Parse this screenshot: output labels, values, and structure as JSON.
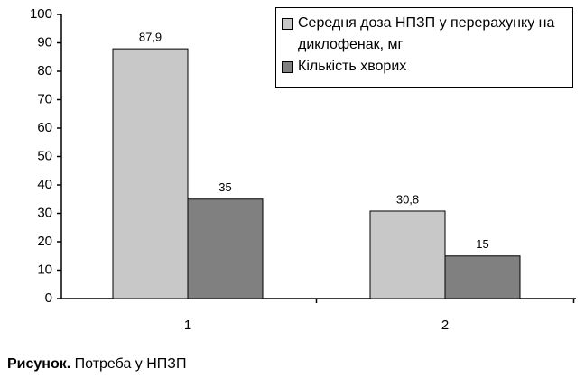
{
  "chart_data": {
    "type": "bar",
    "categories": [
      "1",
      "2"
    ],
    "series": [
      {
        "name": "Середня доза НПЗП у перерахунку на диклофенак, мг",
        "color": "#c8c8c8",
        "values": [
          87.9,
          30.8
        ],
        "value_labels": [
          "87,9",
          "30,8"
        ]
      },
      {
        "name": "Кількість хворих",
        "color": "#808080",
        "values": [
          35,
          15
        ]
      }
    ],
    "ylim": [
      0,
      100
    ],
    "yticks": [
      0,
      10,
      20,
      30,
      40,
      50,
      60,
      70,
      80,
      90,
      100
    ],
    "legend": "top-right"
  },
  "caption": {
    "label": "Рисунок.",
    "text": "Потреба у НПЗП"
  }
}
